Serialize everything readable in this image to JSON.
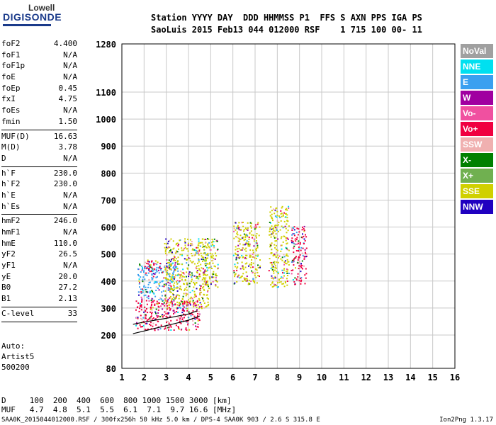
{
  "logo": {
    "line1": "Lowell",
    "line2": "DIGISONDE"
  },
  "header": {
    "line1": "Station YYYY DAY  DDD HHMMSS P1  FFS S AXN PPS IGA PS",
    "line2": "SaoLuis 2015 Feb13 044 012000 RSF    1 715 100 00- 11"
  },
  "params": [
    {
      "name": "foF2",
      "value": "4.400"
    },
    {
      "name": "foF1",
      "value": "N/A"
    },
    {
      "name": "foF1p",
      "value": "N/A"
    },
    {
      "name": "foE",
      "value": "N/A"
    },
    {
      "name": "foEp",
      "value": "0.45"
    },
    {
      "name": "fxI",
      "value": "4.75"
    },
    {
      "name": "foEs",
      "value": "N/A"
    },
    {
      "name": "fmin",
      "value": "1.50"
    },
    {
      "sep": true
    },
    {
      "name": "MUF(D)",
      "value": "16.63"
    },
    {
      "name": "M(D)",
      "value": "3.78"
    },
    {
      "name": "D",
      "value": "N/A"
    },
    {
      "sep": true
    },
    {
      "name": "h`F",
      "value": "230.0"
    },
    {
      "name": "h`F2",
      "value": "230.0"
    },
    {
      "name": "h`E",
      "value": "N/A"
    },
    {
      "name": "h`Es",
      "value": "N/A"
    },
    {
      "sep": true
    },
    {
      "name": "hmF2",
      "value": "246.0"
    },
    {
      "name": "hmF1",
      "value": "N/A"
    },
    {
      "name": "hmE",
      "value": "110.0"
    },
    {
      "name": "yF2",
      "value": "26.5"
    },
    {
      "name": "yF1",
      "value": "N/A"
    },
    {
      "name": "yE",
      "value": "20.0"
    },
    {
      "name": "B0",
      "value": "27.2"
    },
    {
      "name": "B1",
      "value": "2.13"
    },
    {
      "sep": true
    },
    {
      "name": "C-level",
      "value": "33"
    },
    {
      "sep": true
    }
  ],
  "auto": {
    "l1": "Auto:",
    "l2": "Artist5",
    "l3": "500200"
  },
  "legend": [
    {
      "label": "NoVal",
      "color": "#a0a0a0"
    },
    {
      "label": "NNE",
      "color": "#00e0f0"
    },
    {
      "label": "E",
      "color": "#3aa0f0"
    },
    {
      "label": "W",
      "color": "#a000a0"
    },
    {
      "label": "Vo-",
      "color": "#f050a0"
    },
    {
      "label": "Vo+",
      "color": "#f00040"
    },
    {
      "label": "SSW",
      "color": "#f0b0b0"
    },
    {
      "label": "X-",
      "color": "#008000"
    },
    {
      "label": "X+",
      "color": "#70b050"
    },
    {
      "label": "SSE",
      "color": "#d0d000"
    },
    {
      "label": "NNW",
      "color": "#2000c0"
    }
  ],
  "chart_data": {
    "type": "scatter",
    "title": "",
    "xlabel": "",
    "ylabel": "",
    "xlim": [
      1,
      16
    ],
    "ylim": [
      80,
      1280
    ],
    "x_ticks": [
      1,
      2,
      3,
      4,
      5,
      6,
      7,
      8,
      9,
      10,
      11,
      12,
      13,
      14,
      15,
      16
    ],
    "y_ticks": [
      80,
      200,
      300,
      400,
      500,
      600,
      700,
      800,
      900,
      1000,
      1100,
      1280
    ],
    "grid": true,
    "trace_o": [
      [
        1.5,
        240
      ],
      [
        2.0,
        248
      ],
      [
        2.5,
        255
      ],
      [
        3.0,
        262
      ],
      [
        3.5,
        270
      ],
      [
        4.0,
        278
      ],
      [
        4.4,
        290
      ]
    ],
    "trace_x": [
      [
        1.5,
        205
      ],
      [
        2.0,
        215
      ],
      [
        2.5,
        225
      ],
      [
        3.0,
        235
      ],
      [
        3.5,
        245
      ],
      [
        4.0,
        255
      ],
      [
        4.5,
        270
      ]
    ],
    "echo_regions": [
      {
        "x": [
          1.6,
          4.5
        ],
        "y": [
          220,
          330
        ],
        "series": "Vo+"
      },
      {
        "x": [
          1.7,
          3.5
        ],
        "y": [
          330,
          470
        ],
        "series": "E"
      },
      {
        "x": [
          2.9,
          4.9
        ],
        "y": [
          300,
          560
        ],
        "series": "SSE"
      },
      {
        "x": [
          4.6,
          5.3
        ],
        "y": [
          370,
          560
        ],
        "series": "SSE"
      },
      {
        "x": [
          6.0,
          7.2
        ],
        "y": [
          390,
          620
        ],
        "series": "SSE"
      },
      {
        "x": [
          7.6,
          8.5
        ],
        "y": [
          380,
          680
        ],
        "series": "SSE"
      },
      {
        "x": [
          8.6,
          9.3
        ],
        "y": [
          390,
          610
        ],
        "series": "Vo+"
      },
      {
        "x": [
          2.0,
          2.8
        ],
        "y": [
          430,
          480
        ],
        "series": "Vo+"
      }
    ]
  },
  "bottom": {
    "d_row": "D     100  200  400  600  800 1000 1500 3000 [km]",
    "muf_row": "MUF   4.7  4.8  5.1  5.5  6.1  7.1  9.7 16.6 [MHz]"
  },
  "footer": {
    "left": "SAA0K_2015044012000.RSF / 300fx256h 50 kHz 5.0 km / DPS-4 SAA0K 903 / 2.6 S 315.8 E",
    "right": "Ion2Png 1.3.17"
  }
}
